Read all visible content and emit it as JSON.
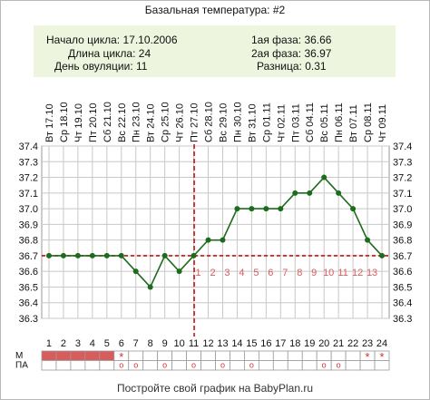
{
  "title": "Базальная температура: #2",
  "summary": {
    "cycle_start_label": "Начало цикла:",
    "cycle_start": "17.10.2006",
    "cycle_length_label": "Длина цикла:",
    "cycle_length": "24",
    "ovulation_day_label": "День овуляции:",
    "ovulation_day": "11",
    "phase1_label": "1ая фаза:",
    "phase1": "36.66",
    "phase2_label": "2ая фаза:",
    "phase2": "36.97",
    "difference_label": "Разница:",
    "difference": "0.31"
  },
  "chart_data": {
    "type": "line",
    "title": "Базальная температура: #2",
    "x_day_numbers": [
      "1",
      "2",
      "3",
      "4",
      "5",
      "6",
      "7",
      "8",
      "9",
      "10",
      "11",
      "12",
      "13",
      "14",
      "15",
      "16",
      "17",
      "18",
      "19",
      "20",
      "21",
      "22",
      "23",
      "24"
    ],
    "x_dates": [
      "Вт 17.10",
      "Ср 18.10",
      "Чт 19.10",
      "Пт 20.10",
      "Сб 21.10",
      "Вс 22.10",
      "Пн 23.10",
      "Вт 24.10",
      "Ср 25.10",
      "Чт 26.10",
      "Пт 27.10",
      "Сб 28.10",
      "Вс 29.10",
      "Пн 30.10",
      "Вт 31.10",
      "Ср 01.11",
      "Чт 02.11",
      "Пт 03.11",
      "Сб 04.11",
      "Вс 05.11",
      "Пн 06.11",
      "Вт 07.11",
      "Ср 08.11",
      "Чт 09.11"
    ],
    "series": [
      {
        "values": [
          36.7,
          36.7,
          36.7,
          36.7,
          36.7,
          36.7,
          36.6,
          36.5,
          36.7,
          36.6,
          36.7,
          36.8,
          36.8,
          37.0,
          37.0,
          37.0,
          37.0,
          37.1,
          37.1,
          37.2,
          37.1,
          37.0,
          36.8,
          36.7
        ],
        "color": "#1d6b1d"
      }
    ],
    "ylim": [
      36.3,
      37.4
    ],
    "y_ticks": [
      "36.3",
      "36.4",
      "36.5",
      "36.6",
      "36.7",
      "36.8",
      "36.9",
      "37.0",
      "37.1",
      "37.2",
      "37.3",
      "37.4"
    ],
    "cover_line": 36.7,
    "cover_line_color": "#cc1111",
    "ovulation_line_day": 11,
    "ovulation_line_color": "#cc1111",
    "post_ovulation_labels": [
      "1",
      "2",
      "3",
      "4",
      "5",
      "6",
      "7",
      "8",
      "9",
      "10",
      "11",
      "12",
      "13"
    ],
    "grid": true,
    "line_color": "#1d6b1d"
  },
  "rows": {
    "m_label": "М",
    "pa_label": "ПА",
    "menstruation_days": [
      1,
      2,
      3,
      4,
      5
    ],
    "menstruation_color": "#d85c5c",
    "m_star_days": [
      6,
      23,
      24
    ],
    "pa_days": [
      6,
      7,
      9,
      11,
      13,
      15,
      20,
      21
    ],
    "star_glyph": "*",
    "circle_glyph": "o",
    "marker_color": "#cc3333"
  },
  "footer": "Постройте свой график на BabyPlan.ru"
}
